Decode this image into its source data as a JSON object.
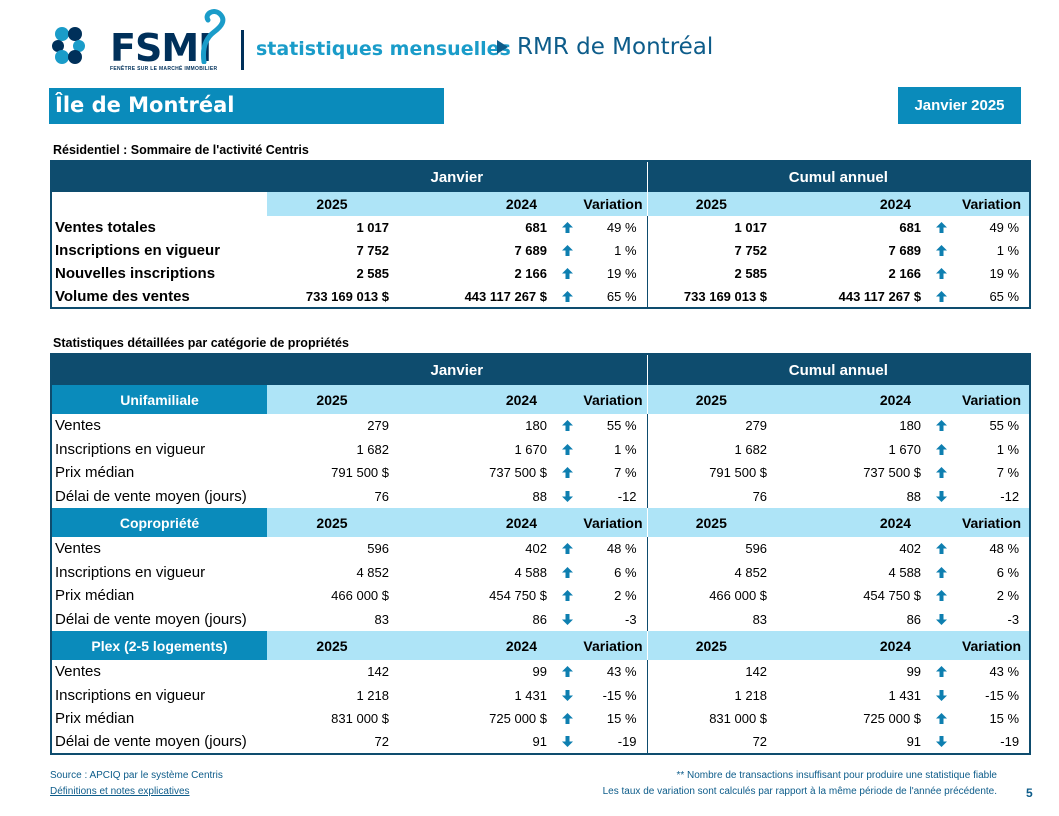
{
  "brand": {
    "logo_text": "FSMI",
    "logo_tagline": "FENÊTRE SUR LE MARCHÉ IMMOBILIER"
  },
  "header": {
    "subtitle": "statistiques mensuelles",
    "region": "RMR de Montréal"
  },
  "banner": {
    "area": "Île de Montréal",
    "period": "Janvier 2025"
  },
  "summary": {
    "title": "Résidentiel : Sommaire de l'activité Centris",
    "group_labels": [
      "Janvier",
      "Cumul annuel"
    ],
    "columns": [
      "2025",
      "2024",
      "Variation",
      "2025",
      "2024",
      "Variation"
    ],
    "rows": [
      {
        "label": "Ventes totales",
        "v": [
          "1 017",
          "681",
          "49 %",
          "1 017",
          "681",
          "49 %"
        ],
        "dir": [
          "up",
          "up"
        ]
      },
      {
        "label": "Inscriptions en vigueur",
        "v": [
          "7 752",
          "7 689",
          "1 %",
          "7 752",
          "7 689",
          "1 %"
        ],
        "dir": [
          "up",
          "up"
        ]
      },
      {
        "label": "Nouvelles inscriptions",
        "v": [
          "2 585",
          "2 166",
          "19 %",
          "2 585",
          "2 166",
          "19 %"
        ],
        "dir": [
          "up",
          "up"
        ]
      },
      {
        "label": "Volume des ventes",
        "v": [
          "733 169 013  $",
          "443 117 267  $",
          "65 %",
          "733 169 013  $",
          "443 117 267  $",
          "65 %"
        ],
        "dir": [
          "up",
          "up"
        ]
      }
    ]
  },
  "detail": {
    "title": "Statistiques détaillées par catégorie de propriétés",
    "group_labels": [
      "Janvier",
      "Cumul annuel"
    ],
    "columns": [
      "2025",
      "2024",
      "Variation",
      "2025",
      "2024",
      "Variation"
    ],
    "categories": [
      {
        "name": "Unifamiliale",
        "rows": [
          {
            "label": "Ventes",
            "v": [
              "279",
              "180",
              "55 %",
              "279",
              "180",
              "55 %"
            ],
            "dir": [
              "up",
              "up"
            ]
          },
          {
            "label": "Inscriptions en vigueur",
            "v": [
              "1 682",
              "1 670",
              "1 %",
              "1 682",
              "1 670",
              "1 %"
            ],
            "dir": [
              "up",
              "up"
            ]
          },
          {
            "label": "Prix médian",
            "v": [
              "791 500 $",
              "737 500 $",
              "7 %",
              "791 500 $",
              "737 500 $",
              "7 %"
            ],
            "dir": [
              "up",
              "up"
            ]
          },
          {
            "label": "Délai de vente moyen (jours)",
            "v": [
              "76",
              "88",
              "-12",
              "76",
              "88",
              "-12"
            ],
            "dir": [
              "down",
              "down"
            ]
          }
        ]
      },
      {
        "name": "Copropriété",
        "rows": [
          {
            "label": "Ventes",
            "v": [
              "596",
              "402",
              "48 %",
              "596",
              "402",
              "48 %"
            ],
            "dir": [
              "up",
              "up"
            ]
          },
          {
            "label": "Inscriptions en vigueur",
            "v": [
              "4 852",
              "4 588",
              "6 %",
              "4 852",
              "4 588",
              "6 %"
            ],
            "dir": [
              "up",
              "up"
            ]
          },
          {
            "label": "Prix médian",
            "v": [
              "466 000 $",
              "454 750 $",
              "2 %",
              "466 000 $",
              "454 750 $",
              "2 %"
            ],
            "dir": [
              "up",
              "up"
            ]
          },
          {
            "label": "Délai de vente moyen (jours)",
            "v": [
              "83",
              "86",
              "-3",
              "83",
              "86",
              "-3"
            ],
            "dir": [
              "down",
              "down"
            ]
          }
        ]
      },
      {
        "name": "Plex (2-5 logements)",
        "rows": [
          {
            "label": "Ventes",
            "v": [
              "142",
              "99",
              "43 %",
              "142",
              "99",
              "43 %"
            ],
            "dir": [
              "up",
              "up"
            ]
          },
          {
            "label": "Inscriptions en vigueur",
            "v": [
              "1 218",
              "1 431",
              "-15 %",
              "1 218",
              "1 431",
              "-15 %"
            ],
            "dir": [
              "down",
              "down"
            ]
          },
          {
            "label": "Prix médian",
            "v": [
              "831 000 $",
              "725 000 $",
              "15 %",
              "831 000 $",
              "725 000 $",
              "15 %"
            ],
            "dir": [
              "up",
              "up"
            ]
          },
          {
            "label": "Délai de vente moyen (jours)",
            "v": [
              "72",
              "91",
              "-19",
              "72",
              "91",
              "-19"
            ],
            "dir": [
              "down",
              "down"
            ]
          }
        ]
      }
    ]
  },
  "footer": {
    "source": "Source : APCIQ par le système Centris",
    "definitions_link": "Définitions et notes explicatives",
    "note1": "** Nombre de transactions insuffisant pour produire une statistique fiable",
    "note2": "Les taux de variation sont calculés par rapport à la même période de l'année précédente.",
    "page_number": "5"
  },
  "colors": {
    "navy": "#0e4c6e",
    "accent": "#0a8bbb",
    "light": "#aee4f7",
    "arrow": "#0e7fb0"
  },
  "icons": {
    "up": "arrow-up-icon",
    "down": "arrow-down-icon"
  }
}
